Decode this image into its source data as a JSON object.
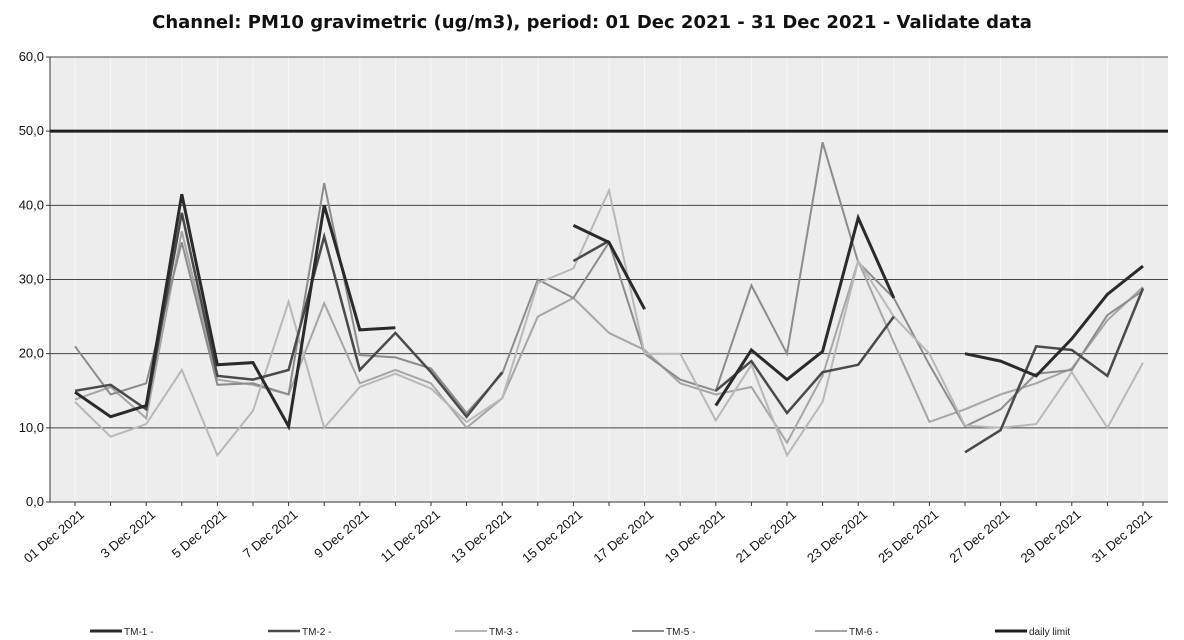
{
  "chart_data": {
    "type": "line",
    "title": "Channel: PM10 gravimetric (ug/m3), period: 01 Dec 2021 - 31 Dec 2021 - Validate data",
    "xlabel": "",
    "ylabel": "",
    "ylim": [
      0,
      60
    ],
    "yticks": [
      "0,0",
      "10,0",
      "20,0",
      "30,0",
      "40,0",
      "50,0",
      "60,0"
    ],
    "ytick_values": [
      0,
      10,
      20,
      30,
      40,
      50,
      60
    ],
    "categories": [
      "01 Dec 2021",
      "02 Dec 2021",
      "03 Dec 2021",
      "04 Dec 2021",
      "05 Dec 2021",
      "06 Dec 2021",
      "07 Dec 2021",
      "08 Dec 2021",
      "09 Dec 2021",
      "10 Dec 2021",
      "11 Dec 2021",
      "12 Dec 2021",
      "13 Dec 2021",
      "14 Dec 2021",
      "15 Dec 2021",
      "16 Dec 2021",
      "17 Dec 2021",
      "18 Dec 2021",
      "19 Dec 2021",
      "20 Dec 2021",
      "21 Dec 2021",
      "22 Dec 2021",
      "23 Dec 2021",
      "24 Dec 2021",
      "25 Dec 2021",
      "26 Dec 2021",
      "27 Dec 2021",
      "28 Dec 2021",
      "29 Dec 2021",
      "30 Dec 2021",
      "31 Dec 2021"
    ],
    "x_tick_labels": [
      "01 Dec 2021",
      "3 Dec 2021",
      "5 Dec 2021",
      "7 Dec 2021",
      "9 Dec 2021",
      "11 Dec 2021",
      "13 Dec 2021",
      "15 Dec 2021",
      "17 Dec 2021",
      "19 Dec 2021",
      "21 Dec 2021",
      "23 Dec 2021",
      "25 Dec 2021",
      "27 Dec 2021",
      "29 Dec 2021",
      "31 Dec 2021"
    ],
    "grid": "horizontal",
    "legend_position": "bottom",
    "series": [
      {
        "name": "TM-1 -",
        "color": "#2a2a2a",
        "width": 3,
        "values": [
          14.8,
          11.5,
          13.0,
          41.5,
          18.5,
          18.8,
          10.2,
          40.0,
          23.2,
          23.5,
          null,
          null,
          null,
          null,
          37.3,
          35.0,
          26.0,
          null,
          13.0,
          20.5,
          16.5,
          20.3,
          38.3,
          27.5,
          null,
          20.0,
          19.0,
          17.0,
          22.0,
          28.0,
          31.8
        ]
      },
      {
        "name": "TM-2 -",
        "color": "#4a4a4a",
        "width": 2.5,
        "values": [
          15.0,
          15.8,
          12.5,
          39.0,
          17.0,
          16.5,
          17.8,
          35.8,
          17.8,
          22.8,
          17.5,
          11.5,
          17.5,
          null,
          32.5,
          35.2,
          null,
          null,
          15.0,
          19.0,
          12.0,
          17.5,
          18.5,
          25.0,
          null,
          6.7,
          9.7,
          21.0,
          20.5,
          17.0,
          28.8
        ]
      },
      {
        "name": "TM-3 -",
        "color": "#b8b8b8",
        "width": 2,
        "values": [
          13.5,
          8.8,
          10.5,
          17.8,
          6.3,
          12.3,
          27.0,
          10.0,
          15.5,
          17.3,
          15.3,
          10.8,
          14.0,
          29.5,
          31.5,
          42.0,
          20.0,
          20.0,
          11.0,
          18.5,
          6.3,
          13.5,
          32.5,
          25.0,
          20.0,
          10.3,
          10.0,
          10.5,
          17.5,
          10.0,
          18.8
        ]
      },
      {
        "name": "TM-5 -",
        "color": "#8c8c8c",
        "width": 2,
        "values": [
          21.0,
          14.5,
          16.0,
          35.0,
          15.8,
          16.0,
          14.5,
          43.0,
          19.8,
          19.5,
          18.0,
          12.0,
          17.3,
          30.0,
          27.5,
          35.0,
          20.0,
          16.5,
          15.0,
          29.2,
          20.0,
          48.5,
          32.3,
          27.5,
          18.5,
          10.2,
          12.5,
          17.3,
          17.8,
          25.2,
          28.5
        ]
      },
      {
        "name": "TM-6 -",
        "color": "#a6a6a6",
        "width": 2,
        "values": [
          13.8,
          15.5,
          11.3,
          36.5,
          16.5,
          15.8,
          14.5,
          26.8,
          16.0,
          17.8,
          16.0,
          10.0,
          14.0,
          25.0,
          27.5,
          22.8,
          20.5,
          16.0,
          14.5,
          15.5,
          8.0,
          17.0,
          32.5,
          21.5,
          10.8,
          12.5,
          14.5,
          16.0,
          18.0,
          24.5,
          29.0
        ]
      },
      {
        "name": "daily limit",
        "color": "#1e1e1e",
        "width": 3,
        "values": [
          50,
          50,
          50,
          50,
          50,
          50,
          50,
          50,
          50,
          50,
          50,
          50,
          50,
          50,
          50,
          50,
          50,
          50,
          50,
          50,
          50,
          50,
          50,
          50,
          50,
          50,
          50,
          50,
          50,
          50,
          50
        ]
      }
    ]
  }
}
